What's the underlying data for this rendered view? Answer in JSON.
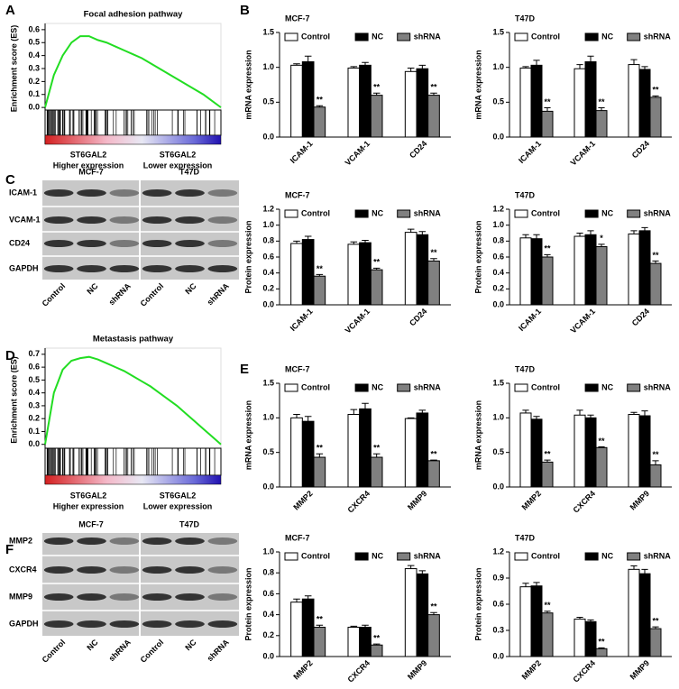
{
  "panel_labels": [
    "A",
    "B",
    "C",
    "D",
    "E",
    "F"
  ],
  "chart_data": [
    {
      "type": "line",
      "title": "Focal adhesion pathway",
      "ylabel": "Enrichment score (ES)",
      "color": "#22dd22",
      "values": [
        0,
        0.25,
        0.4,
        0.5,
        0.55,
        0.55,
        0.52,
        0.5,
        0.47,
        0.44,
        0.41,
        0.38,
        0.34,
        0.3,
        0.26,
        0.22,
        0.18,
        0.14,
        0.1,
        0.05,
        0
      ],
      "ylim": [
        -0.02,
        0.62
      ],
      "yticks": [
        {
          "value": 0,
          "label": "0.0"
        },
        0.1,
        0.2,
        0.3,
        0.4,
        0.5,
        0.6
      ],
      "group_labels": [
        [
          "ST6GAL2",
          "Higher expression"
        ],
        [
          "ST6GAL2",
          "Lower expression"
        ]
      ]
    },
    {
      "type": "bar",
      "title": "MCF-7",
      "ylabel": "mRNA expression",
      "categories": [
        "ICAM-1",
        "VCAM-1",
        "CD24"
      ],
      "ylim": [
        0,
        1.5
      ],
      "yticks": [
        {
          "value": 0,
          "label": "0.0"
        },
        0.5,
        {
          "value": 1,
          "label": "1.0"
        },
        1.5
      ],
      "series": [
        {
          "name": "Control",
          "color": "#ffffff",
          "values": [
            1.03,
            0.99,
            0.94
          ],
          "errors": [
            0.02,
            0.02,
            0.05
          ]
        },
        {
          "name": "NC",
          "color": "#000000",
          "values": [
            1.08,
            1.03,
            0.98
          ],
          "errors": [
            0.08,
            0.04,
            0.05
          ]
        },
        {
          "name": "shRNA",
          "color": "#808080",
          "values": [
            0.43,
            0.6,
            0.6
          ],
          "errors": [
            0.02,
            0.03,
            0.03
          ],
          "significance": [
            "**",
            "**",
            "**"
          ]
        }
      ]
    },
    {
      "type": "bar",
      "title": "T47D",
      "ylabel": "mRNA expression",
      "categories": [
        "ICAM-1",
        "VCAM-1",
        "CD24"
      ],
      "ylim": [
        0,
        1.5
      ],
      "yticks": [
        {
          "value": 0,
          "label": "0.0"
        },
        0.5,
        {
          "value": 1,
          "label": "1.0"
        },
        1.5
      ],
      "series": [
        {
          "name": "Control",
          "color": "#ffffff",
          "values": [
            0.99,
            0.98,
            1.04
          ],
          "errors": [
            0.02,
            0.06,
            0.07
          ]
        },
        {
          "name": "NC",
          "color": "#000000",
          "values": [
            1.03,
            1.08,
            0.97
          ],
          "errors": [
            0.07,
            0.08,
            0.04
          ]
        },
        {
          "name": "shRNA",
          "color": "#808080",
          "values": [
            0.37,
            0.38,
            0.57
          ],
          "errors": [
            0.05,
            0.04,
            0.02
          ],
          "significance": [
            "**",
            "**",
            "**"
          ]
        }
      ]
    },
    {
      "type": "bar",
      "title": "MCF-7",
      "ylabel": "Protein expression",
      "categories": [
        "ICAM-1",
        "VCAM-1",
        "CD24"
      ],
      "ylim": [
        0,
        1.2
      ],
      "yticks": [
        {
          "value": 0,
          "label": "0.0"
        },
        0.2,
        0.4,
        0.6,
        0.8,
        {
          "value": 1,
          "label": "1.0"
        },
        1.2
      ],
      "series": [
        {
          "name": "Control",
          "color": "#ffffff",
          "values": [
            0.77,
            0.76,
            0.91
          ],
          "errors": [
            0.03,
            0.03,
            0.04
          ]
        },
        {
          "name": "NC",
          "color": "#000000",
          "values": [
            0.82,
            0.78,
            0.88
          ],
          "errors": [
            0.04,
            0.03,
            0.04
          ]
        },
        {
          "name": "shRNA",
          "color": "#808080",
          "values": [
            0.36,
            0.44,
            0.55
          ],
          "errors": [
            0.02,
            0.02,
            0.03
          ],
          "significance": [
            "**",
            "**",
            "**"
          ]
        }
      ]
    },
    {
      "type": "bar",
      "title": "T47D",
      "ylabel": "Protein expression",
      "categories": [
        "ICAM-1",
        "VCAM-1",
        "CD24"
      ],
      "ylim": [
        0,
        1.2
      ],
      "yticks": [
        {
          "value": 0,
          "label": "0.0"
        },
        0.2,
        0.4,
        0.6,
        0.8,
        {
          "value": 1,
          "label": "1.0"
        },
        1.2
      ],
      "series": [
        {
          "name": "Control",
          "color": "#ffffff",
          "values": [
            0.84,
            0.86,
            0.89
          ],
          "errors": [
            0.04,
            0.04,
            0.04
          ]
        },
        {
          "name": "NC",
          "color": "#000000",
          "values": [
            0.83,
            0.88,
            0.93
          ],
          "errors": [
            0.05,
            0.05,
            0.04
          ]
        },
        {
          "name": "shRNA",
          "color": "#808080",
          "values": [
            0.6,
            0.73,
            0.52
          ],
          "errors": [
            0.03,
            0.03,
            0.03
          ],
          "significance": [
            "**",
            "*",
            "**"
          ]
        }
      ]
    },
    {
      "type": "line",
      "title": "Metastasis pathway",
      "ylabel": "Enrichment score (ES)",
      "color": "#22dd22",
      "values": [
        0,
        0.4,
        0.58,
        0.65,
        0.67,
        0.68,
        0.66,
        0.63,
        0.6,
        0.57,
        0.53,
        0.49,
        0.45,
        0.4,
        0.35,
        0.3,
        0.24,
        0.18,
        0.12,
        0.06,
        0
      ],
      "ylim": [
        -0.03,
        0.72
      ],
      "yticks": [
        {
          "value": 0,
          "label": "0.0"
        },
        0.1,
        0.2,
        0.3,
        0.4,
        0.5,
        0.6,
        0.7
      ],
      "group_labels": [
        [
          "ST6GAL2",
          "Higher expression"
        ],
        [
          "ST6GAL2",
          "Lower expression"
        ]
      ]
    },
    {
      "type": "bar",
      "title": "MCF-7",
      "ylabel": "mRNA expression",
      "categories": [
        "MMP2",
        "CXCR4",
        "MMP9"
      ],
      "ylim": [
        0,
        1.5
      ],
      "yticks": [
        {
          "value": 0,
          "label": "0.0"
        },
        0.5,
        {
          "value": 1,
          "label": "1.0"
        },
        1.5
      ],
      "series": [
        {
          "name": "Control",
          "color": "#ffffff",
          "values": [
            1.0,
            1.05,
            0.99
          ],
          "errors": [
            0.05,
            0.07,
            0.01
          ]
        },
        {
          "name": "NC",
          "color": "#000000",
          "values": [
            0.95,
            1.13,
            1.07
          ],
          "errors": [
            0.07,
            0.08,
            0.04
          ]
        },
        {
          "name": "shRNA",
          "color": "#808080",
          "values": [
            0.43,
            0.43,
            0.38
          ],
          "errors": [
            0.05,
            0.05,
            0.01
          ],
          "significance": [
            "**",
            "**",
            "**"
          ]
        }
      ]
    },
    {
      "type": "bar",
      "title": "T47D",
      "ylabel": "mRNA expression",
      "categories": [
        "MMP2",
        "CXCR4",
        "MMP9"
      ],
      "ylim": [
        0,
        1.5
      ],
      "yticks": [
        {
          "value": 0,
          "label": "0.0"
        },
        0.5,
        {
          "value": 1,
          "label": "1.0"
        },
        1.5
      ],
      "series": [
        {
          "name": "Control",
          "color": "#ffffff",
          "values": [
            1.07,
            1.04,
            1.05
          ],
          "errors": [
            0.04,
            0.07,
            0.03
          ]
        },
        {
          "name": "NC",
          "color": "#000000",
          "values": [
            0.98,
            1.0,
            1.03
          ],
          "errors": [
            0.04,
            0.04,
            0.07
          ]
        },
        {
          "name": "shRNA",
          "color": "#808080",
          "values": [
            0.36,
            0.57,
            0.32
          ],
          "errors": [
            0.03,
            0.01,
            0.06
          ],
          "significance": [
            "**",
            "**",
            "**"
          ]
        }
      ]
    },
    {
      "type": "bar",
      "title": "MCF-7",
      "ylabel": "Protein expression",
      "categories": [
        "MMP2",
        "CXCR4",
        "MMP9"
      ],
      "ylim": [
        0,
        1
      ],
      "yticks": [
        {
          "value": 0,
          "label": "0.0"
        },
        0.2,
        0.4,
        0.6,
        0.8,
        {
          "value": 1,
          "label": "1.0"
        }
      ],
      "series": [
        {
          "name": "Control",
          "color": "#ffffff",
          "values": [
            0.52,
            0.28,
            0.84
          ],
          "errors": [
            0.03,
            0.01,
            0.03
          ]
        },
        {
          "name": "NC",
          "color": "#000000",
          "values": [
            0.55,
            0.28,
            0.79
          ],
          "errors": [
            0.03,
            0.02,
            0.03
          ]
        },
        {
          "name": "shRNA",
          "color": "#808080",
          "values": [
            0.28,
            0.11,
            0.4
          ],
          "errors": [
            0.02,
            0.01,
            0.02
          ],
          "significance": [
            "**",
            "**",
            "**"
          ]
        }
      ]
    },
    {
      "type": "bar",
      "title": "T47D",
      "ylabel": "Protein expression",
      "categories": [
        "MMP2",
        "CXCR4",
        "MMP9"
      ],
      "ylim": [
        0,
        1.2
      ],
      "yticks": [
        {
          "value": 0,
          "label": "0.0"
        },
        0.3,
        0.6,
        0.9,
        1.2
      ],
      "series": [
        {
          "name": "Control",
          "color": "#ffffff",
          "values": [
            0.8,
            0.43,
            1.0
          ],
          "errors": [
            0.04,
            0.02,
            0.04
          ]
        },
        {
          "name": "NC",
          "color": "#000000",
          "values": [
            0.81,
            0.4,
            0.95
          ],
          "errors": [
            0.04,
            0.02,
            0.05
          ]
        },
        {
          "name": "shRNA",
          "color": "#808080",
          "values": [
            0.5,
            0.09,
            0.32
          ],
          "errors": [
            0.02,
            0.01,
            0.02
          ],
          "significance": [
            "**",
            "**",
            "**"
          ]
        }
      ]
    }
  ],
  "blots": [
    {
      "cell_lines": [
        "MCF-7",
        "T47D"
      ],
      "rows": [
        "ICAM-1",
        "VCAM-1",
        "CD24",
        "GAPDH"
      ],
      "lanes": [
        "Control",
        "NC",
        "shRNA",
        "Control",
        "NC",
        "shRNA"
      ]
    },
    {
      "cell_lines": [
        "MCF-7",
        "T47D"
      ],
      "rows": [
        "MMP2",
        "CXCR4",
        "MMP9",
        "GAPDH"
      ],
      "lanes": [
        "Control",
        "NC",
        "shRNA",
        "Control",
        "NC",
        "shRNA"
      ]
    }
  ]
}
